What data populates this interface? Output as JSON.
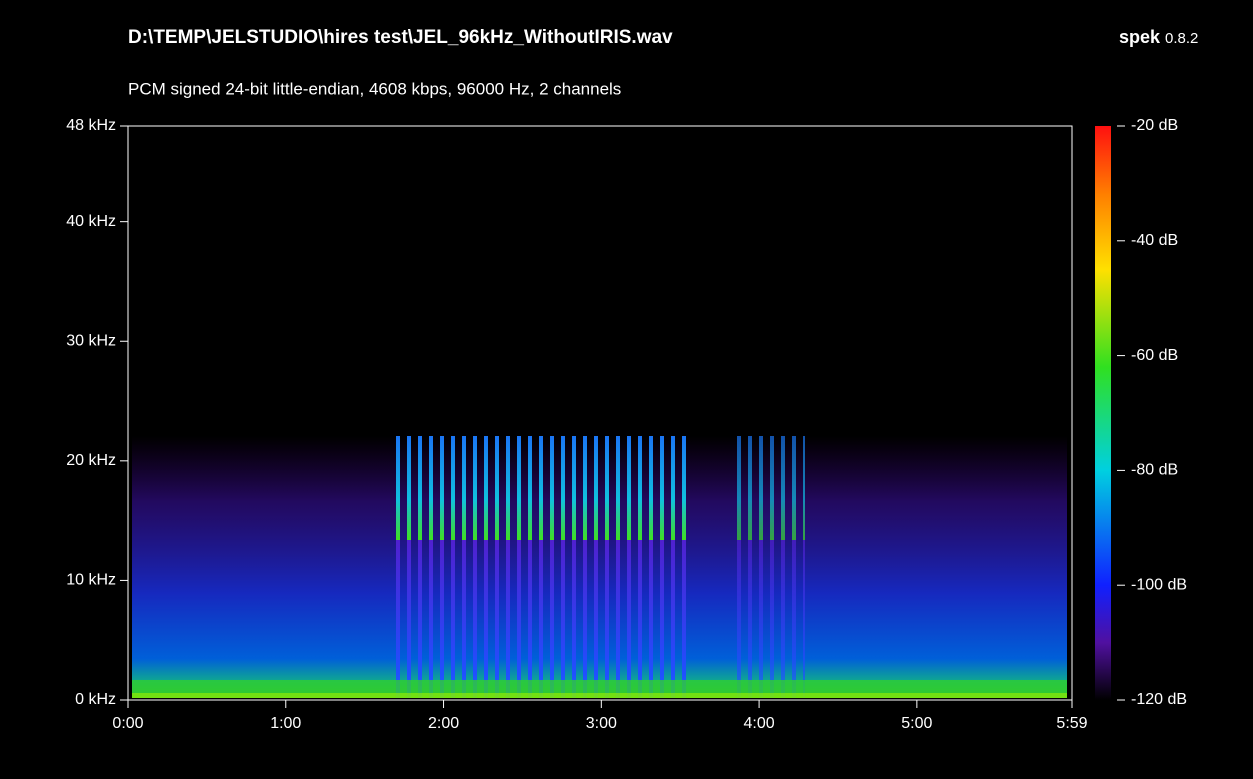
{
  "chart_data": {
    "type": "spectrogram",
    "title": "D:\\TEMP\\JELSTUDIO\\hires test\\JEL_96kHz_WithoutIRIS.wav",
    "subtitle": "PCM signed 24-bit little-endian, 4608 kbps, 96000 Hz, 2 channels",
    "app_name": "spek",
    "app_version": "0.8.2",
    "xlim": [
      0,
      359
    ],
    "xticks": [
      {
        "value": 0,
        "label": "0:00"
      },
      {
        "value": 60,
        "label": "1:00"
      },
      {
        "value": 120,
        "label": "2:00"
      },
      {
        "value": 180,
        "label": "3:00"
      },
      {
        "value": 240,
        "label": "4:00"
      },
      {
        "value": 300,
        "label": "5:00"
      },
      {
        "value": 359,
        "label": "5:59"
      }
    ],
    "ylim": [
      0,
      48
    ],
    "yticks": [
      {
        "value": 0,
        "label": "0 kHz"
      },
      {
        "value": 10,
        "label": "10 kHz"
      },
      {
        "value": 20,
        "label": "20 kHz"
      },
      {
        "value": 30,
        "label": "30 kHz"
      },
      {
        "value": 40,
        "label": "40 kHz"
      },
      {
        "value": 48,
        "label": "48 kHz"
      }
    ],
    "clim": [
      -120,
      -20
    ],
    "cticks": [
      {
        "value": -20,
        "label": "-20 dB"
      },
      {
        "value": -40,
        "label": "-40 dB"
      },
      {
        "value": -60,
        "label": "-60 dB"
      },
      {
        "value": -80,
        "label": "-80 dB"
      },
      {
        "value": -100,
        "label": "-100 dB"
      },
      {
        "value": -120,
        "label": "-120 dB"
      }
    ]
  }
}
